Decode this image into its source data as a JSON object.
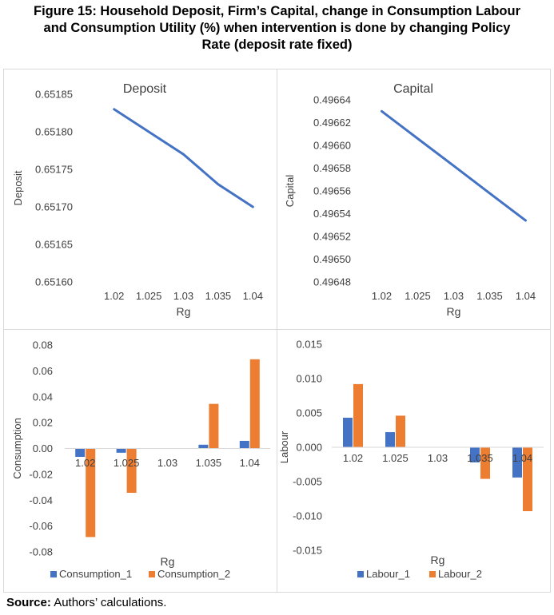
{
  "figure": {
    "title_line1": "Figure 15: Household Deposit, Firm’s Capital, change in Consumption Labour",
    "title_line2": "and Consumption Utility (%) when intervention is done by changing Policy",
    "title_line3": "Rate (deposit rate fixed)",
    "source_label": "Source:",
    "source_text": " Authors’ calculations."
  },
  "colors": {
    "blue": "#4472c4",
    "orange": "#ed7d31",
    "grid": "#d9d9d9",
    "text": "#404040"
  },
  "chart_data": [
    {
      "id": "deposit",
      "type": "line",
      "title": "Deposit",
      "xlabel": "Rg",
      "ylabel": "Deposit",
      "categories": [
        "1.02",
        "1.025",
        "1.03",
        "1.035",
        "1.04"
      ],
      "series": [
        {
          "name": "Deposit",
          "values": [
            0.65183,
            0.6518,
            0.65177,
            0.65173,
            0.6517
          ]
        }
      ],
      "ylim": [
        0.6516,
        0.65185
      ],
      "yticks": [
        0.6516,
        0.65165,
        0.6517,
        0.65175,
        0.6518,
        0.65185
      ],
      "ytick_labels": [
        "0.65160",
        "0.65165",
        "0.65170",
        "0.65175",
        "0.65180",
        "0.65185"
      ],
      "grid": false,
      "legend": "none"
    },
    {
      "id": "capital",
      "type": "line",
      "title": "Capital",
      "xlabel": "Rg",
      "ylabel": "Capital",
      "categories": [
        "1.02",
        "1.025",
        "1.03",
        "1.035",
        "1.04"
      ],
      "series": [
        {
          "name": "Capital",
          "values": [
            0.49663,
            0.496606,
            0.496582,
            0.496558,
            0.496534
          ]
        }
      ],
      "ylim": [
        0.49648,
        0.49664
      ],
      "yticks": [
        0.49648,
        0.4965,
        0.49652,
        0.49654,
        0.49656,
        0.49658,
        0.4966,
        0.49662,
        0.49664
      ],
      "ytick_labels": [
        "0.49648",
        "0.49650",
        "0.49652",
        "0.49654",
        "0.49656",
        "0.49658",
        "0.49660",
        "0.49662",
        "0.49664"
      ],
      "grid": false,
      "legend": "none"
    },
    {
      "id": "consumption",
      "type": "bar",
      "title": "",
      "xlabel": "Rg",
      "ylabel": "Consumption",
      "categories": [
        "1.02",
        "1.025",
        "1.03",
        "1.035",
        "1.04"
      ],
      "series": [
        {
          "name": "Consumption_1",
          "color": "#4472c4",
          "values": [
            -0.0065,
            -0.0033,
            0.0,
            0.0029,
            0.0059
          ]
        },
        {
          "name": "Consumption_2",
          "color": "#ed7d31",
          "values": [
            -0.0685,
            -0.0343,
            0.0,
            0.0345,
            0.069
          ]
        }
      ],
      "ylim": [
        -0.08,
        0.08
      ],
      "yticks": [
        -0.08,
        -0.06,
        -0.04,
        -0.02,
        0.0,
        0.02,
        0.04,
        0.06,
        0.08
      ],
      "ytick_labels": [
        "-0.08",
        "-0.06",
        "-0.04",
        "-0.02",
        "0.00",
        "0.02",
        "0.04",
        "0.06",
        "0.08"
      ],
      "grid": false,
      "legend": "bottom"
    },
    {
      "id": "labour",
      "type": "bar",
      "title": "",
      "xlabel": "Rg",
      "ylabel": "Labour",
      "categories": [
        "1.02",
        "1.025",
        "1.03",
        "1.035",
        "1.04"
      ],
      "series": [
        {
          "name": "Labour_1",
          "color": "#4472c4",
          "values": [
            0.0043,
            0.0022,
            0.0,
            -0.0022,
            -0.0044
          ]
        },
        {
          "name": "Labour_2",
          "color": "#ed7d31",
          "values": [
            0.0092,
            0.0046,
            0.0,
            -0.0046,
            -0.0093
          ]
        }
      ],
      "ylim": [
        -0.015,
        0.015
      ],
      "yticks": [
        -0.015,
        -0.01,
        -0.005,
        0.0,
        0.005,
        0.01,
        0.015
      ],
      "ytick_labels": [
        "-0.015",
        "-0.010",
        "-0.005",
        "0.000",
        "0.005",
        "0.010",
        "0.015"
      ],
      "grid": false,
      "legend": "bottom"
    }
  ]
}
